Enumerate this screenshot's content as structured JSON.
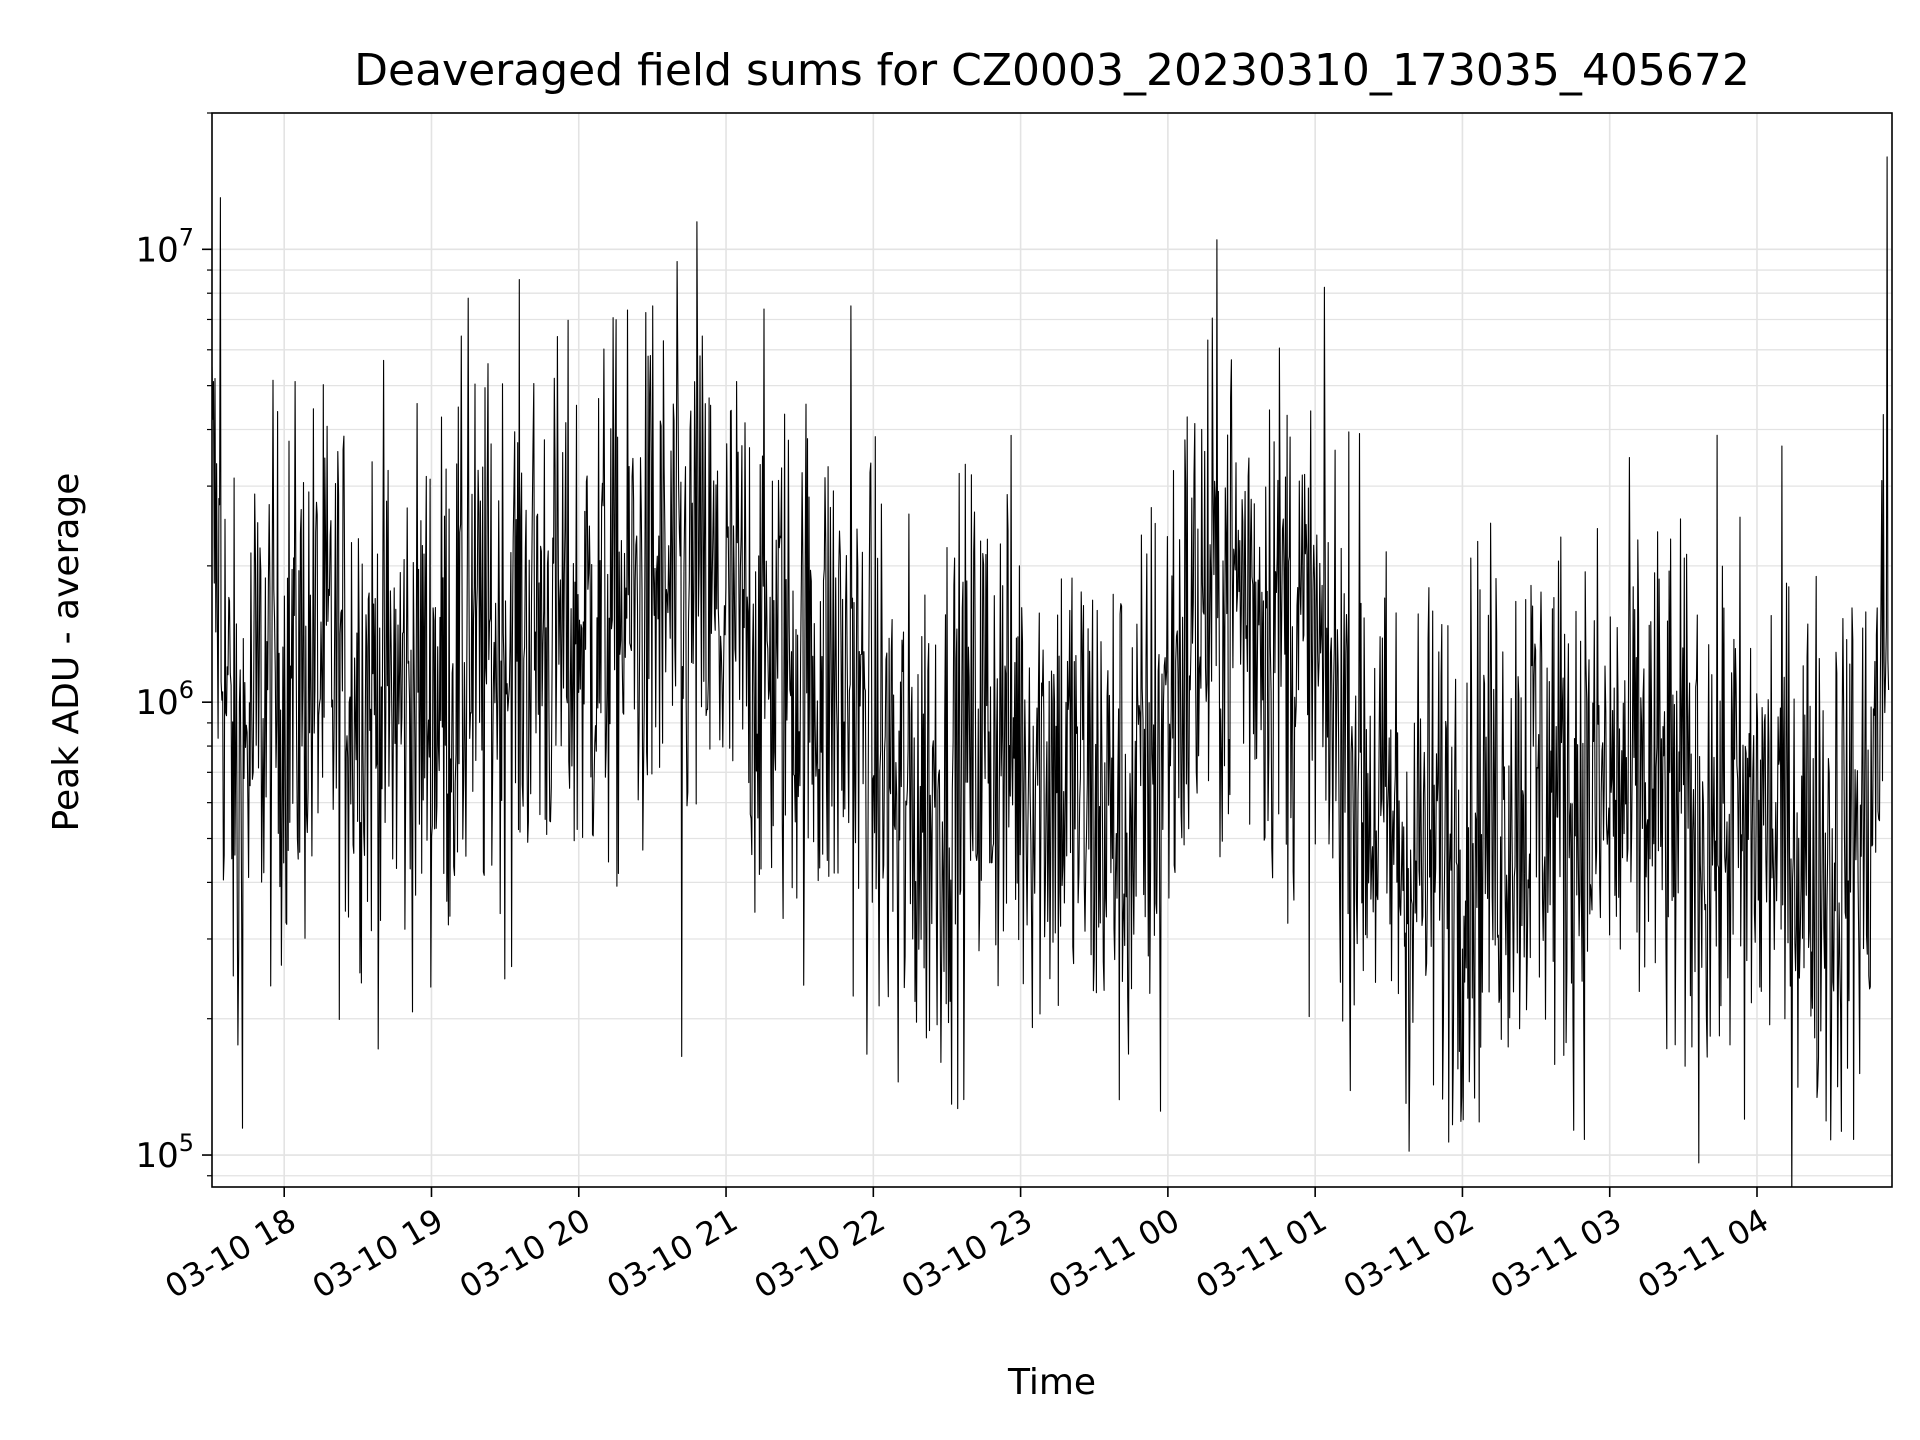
{
  "chart_data": {
    "type": "line",
    "title": "Deaveraged field sums for CZ0003_20230310_173035_405672",
    "xlabel": "Time",
    "ylabel": "Peak ADU - average",
    "yscale": "log",
    "ylim": [
      85000,
      20000000
    ],
    "xlim": [
      "2023-03-10 17:30:35",
      "2023-03-11 04:55:00"
    ],
    "grid": true,
    "line_color": "#000000",
    "x_ticks": [
      {
        "value": "2023-03-10 18:00",
        "label": "03-10 18"
      },
      {
        "value": "2023-03-10 19:00",
        "label": "03-10 19"
      },
      {
        "value": "2023-03-10 20:00",
        "label": "03-10 20"
      },
      {
        "value": "2023-03-10 21:00",
        "label": "03-10 21"
      },
      {
        "value": "2023-03-10 22:00",
        "label": "03-10 22"
      },
      {
        "value": "2023-03-10 23:00",
        "label": "03-10 23"
      },
      {
        "value": "2023-03-11 00:00",
        "label": "03-11 00"
      },
      {
        "value": "2023-03-11 01:00",
        "label": "03-11 01"
      },
      {
        "value": "2023-03-11 02:00",
        "label": "03-11 02"
      },
      {
        "value": "2023-03-11 03:00",
        "label": "03-11 03"
      },
      {
        "value": "2023-03-11 04:00",
        "label": "03-11 04"
      }
    ],
    "y_ticks": [
      {
        "value": 100000,
        "base": "10",
        "exp": "5"
      },
      {
        "value": 1000000,
        "base": "10",
        "exp": "6"
      },
      {
        "value": 10000000,
        "base": "10",
        "exp": "7"
      }
    ],
    "series": [
      {
        "x": [
          "2023-03-10 17:30",
          "2023-03-10 17:35",
          "2023-03-10 17:40",
          "2023-03-10 17:45",
          "2023-03-10 17:50",
          "2023-03-10 18:00",
          "2023-03-10 18:15",
          "2023-03-10 18:30",
          "2023-03-10 18:45",
          "2023-03-10 19:00",
          "2023-03-10 19:15",
          "2023-03-10 19:30",
          "2023-03-10 19:45",
          "2023-03-10 20:00",
          "2023-03-10 20:15",
          "2023-03-10 20:30",
          "2023-03-10 20:45",
          "2023-03-10 21:00",
          "2023-03-10 21:15",
          "2023-03-10 21:30",
          "2023-03-10 21:45",
          "2023-03-10 22:00",
          "2023-03-10 22:15",
          "2023-03-10 22:30",
          "2023-03-10 22:45",
          "2023-03-10 23:00",
          "2023-03-10 23:15",
          "2023-03-10 23:30",
          "2023-03-10 23:45",
          "2023-03-11 00:00",
          "2023-03-11 00:15",
          "2023-03-11 00:30",
          "2023-03-11 00:45",
          "2023-03-11 01:00",
          "2023-03-11 01:15",
          "2023-03-11 01:30",
          "2023-03-11 01:45",
          "2023-03-11 02:00",
          "2023-03-11 02:15",
          "2023-03-11 02:30",
          "2023-03-11 02:45",
          "2023-03-11 03:00",
          "2023-03-11 03:15",
          "2023-03-11 03:30",
          "2023-03-11 03:45",
          "2023-03-11 04:00",
          "2023-03-11 04:15",
          "2023-03-11 04:30",
          "2023-03-11 04:45",
          "2023-03-11 04:52"
        ],
        "y": [
          3000000,
          1300000,
          600000,
          800000,
          1000000,
          1100000,
          1200000,
          1100000,
          1000000,
          1050000,
          1200000,
          1400000,
          1500000,
          1400000,
          1600000,
          1700000,
          1700000,
          1500000,
          1300000,
          1200000,
          1100000,
          800000,
          550000,
          650000,
          900000,
          800000,
          700000,
          600000,
          500000,
          1000000,
          1700000,
          1800000,
          1600000,
          1200000,
          800000,
          500000,
          450000,
          500000,
          600000,
          650000,
          600000,
          600000,
          650000,
          550000,
          550000,
          550000,
          500000,
          450000,
          500000,
          1300000
        ]
      }
    ],
    "spikes": [
      {
        "x": "2023-03-10 17:34",
        "y": 13000000
      },
      {
        "x": "2023-03-10 19:15",
        "y": 7800000
      },
      {
        "x": "2023-03-10 20:30",
        "y": 7500000
      },
      {
        "x": "2023-03-10 20:48",
        "y": 11500000
      },
      {
        "x": "2023-03-10 21:51",
        "y": 7500000
      },
      {
        "x": "2023-03-11 04:53",
        "y": 16000000
      }
    ],
    "dips": [
      {
        "x": "2023-03-10 17:41",
        "y": 175000
      },
      {
        "x": "2023-03-10 20:42",
        "y": 165000
      },
      {
        "x": "2023-03-10 22:10",
        "y": 145000
      },
      {
        "x": "2023-03-10 23:57",
        "y": 125000
      },
      {
        "x": "2023-03-11 01:37",
        "y": 130000
      },
      {
        "x": "2023-03-11 03:55",
        "y": 120000
      },
      {
        "x": "2023-03-11 04:30",
        "y": 108000
      }
    ],
    "noise_log10_amplitude": 0.3
  }
}
